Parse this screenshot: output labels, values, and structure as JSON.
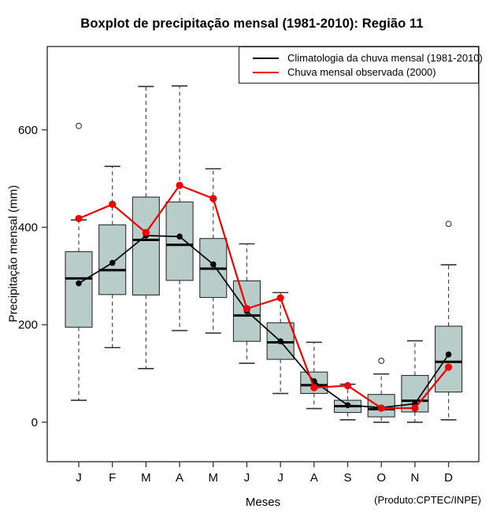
{
  "title": "Boxplot de precipitação mensal (1981-2010): Região 11",
  "credit": "(Produto:CPTEC/INPE)",
  "chart_data": {
    "type": "boxplot",
    "title": "Boxplot de precipitação mensal (1981-2010): Região 11",
    "xlabel": "Meses",
    "ylabel": "Precipitação mensal (mm)",
    "categories": [
      "J",
      "F",
      "M",
      "A",
      "M",
      "J",
      "J",
      "A",
      "S",
      "O",
      "N",
      "D"
    ],
    "y_ticks": [
      0,
      200,
      400,
      600
    ],
    "ylim": [
      -81,
      771
    ],
    "grid": false,
    "legend_position": "top-right",
    "legend": [
      {
        "label": "Climatologia da chuva mensal (1981-2010)",
        "color": "#000000",
        "series": "climatology_mean"
      },
      {
        "label": "Chuva mensal observada (2000)",
        "color": "#f20000",
        "series": "observed_2000"
      }
    ],
    "boxes": [
      {
        "month": "J",
        "low": 45,
        "q1": 195,
        "median": 295,
        "q3": 350,
        "high": 415,
        "outliers": [
          608
        ]
      },
      {
        "month": "F",
        "low": 153,
        "q1": 262,
        "median": 312,
        "q3": 405,
        "high": 525,
        "outliers": []
      },
      {
        "month": "M",
        "low": 110,
        "q1": 261,
        "median": 374,
        "q3": 462,
        "high": 689,
        "outliers": []
      },
      {
        "month": "A",
        "low": 188,
        "q1": 291,
        "median": 364,
        "q3": 452,
        "high": 690,
        "outliers": []
      },
      {
        "month": "M",
        "low": 183,
        "q1": 256,
        "median": 315,
        "q3": 377,
        "high": 520,
        "outliers": []
      },
      {
        "month": "J",
        "low": 121,
        "q1": 166,
        "median": 219,
        "q3": 290,
        "high": 366,
        "outliers": []
      },
      {
        "month": "J",
        "low": 59,
        "q1": 129,
        "median": 164,
        "q3": 204,
        "high": 266,
        "outliers": []
      },
      {
        "month": "A",
        "low": 28,
        "q1": 59,
        "median": 76,
        "q3": 103,
        "high": 164,
        "outliers": []
      },
      {
        "month": "S",
        "low": 5,
        "q1": 20,
        "median": 33,
        "q3": 45,
        "high": 78,
        "outliers": []
      },
      {
        "month": "O",
        "low": 0,
        "q1": 11,
        "median": 27,
        "q3": 57,
        "high": 99,
        "outliers": [
          126
        ]
      },
      {
        "month": "N",
        "low": 0,
        "q1": 21,
        "median": 44,
        "q3": 96,
        "high": 167,
        "outliers": []
      },
      {
        "month": "D",
        "low": 5,
        "q1": 62,
        "median": 124,
        "q3": 197,
        "high": 323,
        "outliers": [
          407
        ]
      }
    ],
    "series": [
      {
        "name": "climatology_mean",
        "color": "#000000",
        "values": [
          285,
          327,
          383,
          381,
          324,
          228,
          166,
          84,
          35,
          30,
          38,
          139
        ]
      },
      {
        "name": "observed_2000",
        "color": "#f20000",
        "values": [
          418,
          447,
          389,
          486,
          459,
          233,
          255,
          71,
          75,
          29,
          29,
          113
        ]
      }
    ],
    "colors": {
      "box_fill": "#b8ccc9",
      "box_border": "#2e2e2e",
      "median": "#000000",
      "whisker": "#4a4a4a",
      "cap": "#333333",
      "outlier": "#333333",
      "axis": "#333333"
    }
  }
}
